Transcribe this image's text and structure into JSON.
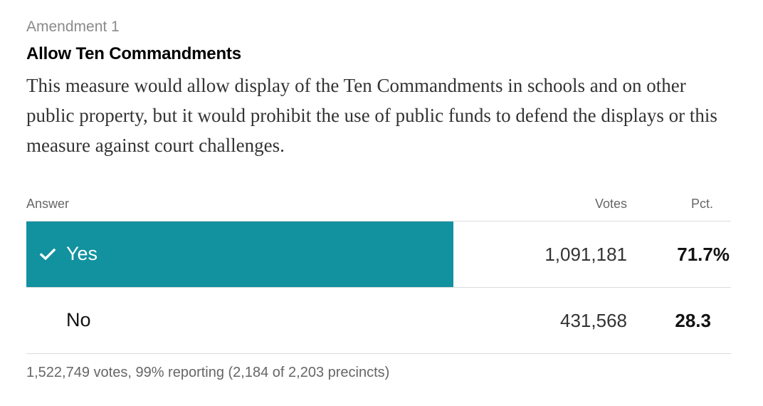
{
  "measure": {
    "kicker": "Amendment 1",
    "title": "Allow Ten Commandments",
    "description": "This measure would allow display of the Ten Commandments in schools and on other public property, but it would prohibit the use of public funds to defend the displays or this measure against court challenges."
  },
  "results_table": {
    "headers": {
      "answer": "Answer",
      "votes": "Votes",
      "pct": "Pct."
    },
    "rows": [
      {
        "answer": "Yes",
        "votes": "1,091,181",
        "pct": "71.7%",
        "winner": true,
        "icon": "checkmark-icon",
        "share": 0.717
      },
      {
        "answer": "No",
        "votes": "431,568",
        "pct": "28.3",
        "winner": false
      }
    ]
  },
  "footer": {
    "summary": "1,522,749 votes, 99% reporting (2,184 of 2,203 precincts)"
  },
  "colors": {
    "winner_bar": "#12919f",
    "text": "#121212",
    "muted": "#666666",
    "kicker": "#8a8a8a",
    "divider": "#dcdcdc"
  }
}
